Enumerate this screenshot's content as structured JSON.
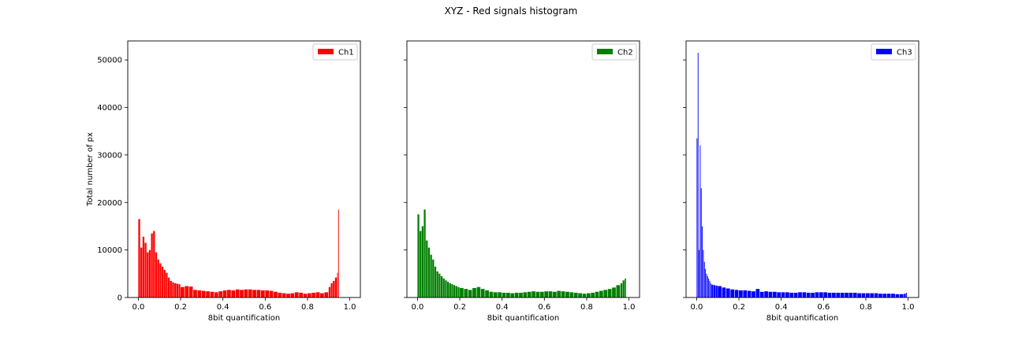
{
  "figure": {
    "suptitle": "XYZ - Red signals histogram"
  },
  "chart_data": [
    {
      "type": "bar",
      "title": "",
      "xlabel": "8bit quantification",
      "ylabel": "Total number of px",
      "xlim": [
        -0.05,
        1.05
      ],
      "ylim": [
        0,
        54000
      ],
      "xticks": [
        "0.0",
        "0.2",
        "0.4",
        "0.6",
        "0.8",
        "1.0"
      ],
      "yticks": [
        "0",
        "10000",
        "20000",
        "30000",
        "40000",
        "50000"
      ],
      "legend": {
        "label": "Ch1",
        "placement": "top-right"
      },
      "color": "#ff0000",
      "x": [
        0.0,
        0.01,
        0.02,
        0.03,
        0.04,
        0.05,
        0.06,
        0.07,
        0.08,
        0.09,
        0.1,
        0.11,
        0.12,
        0.13,
        0.14,
        0.15,
        0.16,
        0.17,
        0.18,
        0.19,
        0.2,
        0.22,
        0.24,
        0.26,
        0.28,
        0.3,
        0.32,
        0.34,
        0.36,
        0.38,
        0.4,
        0.42,
        0.44,
        0.46,
        0.48,
        0.5,
        0.52,
        0.54,
        0.56,
        0.58,
        0.6,
        0.62,
        0.64,
        0.66,
        0.68,
        0.7,
        0.72,
        0.74,
        0.76,
        0.78,
        0.8,
        0.82,
        0.84,
        0.86,
        0.88,
        0.9,
        0.91,
        0.92,
        0.93,
        0.94,
        0.945,
        0.95
      ],
      "values": [
        16500,
        10500,
        12800,
        11500,
        9500,
        10000,
        13500,
        14000,
        9500,
        8000,
        7200,
        6500,
        5800,
        5200,
        4200,
        3500,
        3200,
        3000,
        2900,
        2800,
        2200,
        2400,
        2300,
        1600,
        1500,
        1400,
        1300,
        1200,
        1100,
        1300,
        1500,
        1600,
        1500,
        1700,
        1600,
        1700,
        1700,
        1600,
        1600,
        1500,
        1500,
        1400,
        1200,
        1000,
        900,
        800,
        900,
        1100,
        1000,
        800,
        900,
        1000,
        1100,
        900,
        1100,
        2200,
        3000,
        3500,
        4200,
        5200,
        18500,
        0
      ]
    },
    {
      "type": "bar",
      "title": "",
      "xlabel": "8bit quantification",
      "ylabel": "",
      "xlim": [
        -0.05,
        1.05
      ],
      "ylim": [
        0,
        54000
      ],
      "xticks": [
        "0.0",
        "0.2",
        "0.4",
        "0.6",
        "0.8",
        "1.0"
      ],
      "yticks": [
        "0",
        "10000",
        "20000",
        "30000",
        "40000",
        "50000"
      ],
      "legend": {
        "label": "Ch2",
        "placement": "top-right"
      },
      "color": "#008000",
      "x": [
        0.0,
        0.01,
        0.02,
        0.03,
        0.04,
        0.05,
        0.06,
        0.07,
        0.08,
        0.09,
        0.1,
        0.11,
        0.12,
        0.13,
        0.14,
        0.15,
        0.16,
        0.17,
        0.18,
        0.19,
        0.2,
        0.22,
        0.24,
        0.26,
        0.28,
        0.3,
        0.32,
        0.34,
        0.36,
        0.38,
        0.4,
        0.42,
        0.44,
        0.46,
        0.48,
        0.5,
        0.52,
        0.54,
        0.56,
        0.58,
        0.6,
        0.62,
        0.64,
        0.66,
        0.68,
        0.7,
        0.72,
        0.74,
        0.76,
        0.78,
        0.8,
        0.82,
        0.84,
        0.86,
        0.88,
        0.9,
        0.92,
        0.94,
        0.96,
        0.97,
        0.98
      ],
      "values": [
        17500,
        14000,
        15000,
        18500,
        12000,
        10500,
        9000,
        8000,
        6500,
        5500,
        5000,
        4500,
        4000,
        3600,
        3300,
        3000,
        2800,
        2600,
        2400,
        2200,
        2000,
        1800,
        1600,
        2000,
        2200,
        1800,
        1500,
        1200,
        1100,
        1100,
        1000,
        1000,
        900,
        1000,
        1000,
        1100,
        1200,
        1300,
        1200,
        1200,
        1300,
        1300,
        1200,
        1400,
        1300,
        1200,
        1100,
        1000,
        900,
        800,
        900,
        1000,
        1200,
        1400,
        1600,
        1800,
        2100,
        2600,
        3000,
        3600,
        4000
      ]
    },
    {
      "type": "bar",
      "title": "",
      "xlabel": "8bit quantification",
      "ylabel": "",
      "xlim": [
        -0.05,
        1.05
      ],
      "ylim": [
        0,
        54000
      ],
      "xticks": [
        "0.0",
        "0.2",
        "0.4",
        "0.6",
        "0.8",
        "1.0"
      ],
      "yticks": [
        "0",
        "10000",
        "20000",
        "30000",
        "40000",
        "50000"
      ],
      "legend": {
        "label": "Ch3",
        "placement": "top-right"
      },
      "color": "#0000ff",
      "x": [
        0.0,
        0.005,
        0.01,
        0.015,
        0.02,
        0.025,
        0.03,
        0.035,
        0.04,
        0.045,
        0.05,
        0.055,
        0.06,
        0.065,
        0.07,
        0.08,
        0.09,
        0.1,
        0.12,
        0.14,
        0.16,
        0.18,
        0.2,
        0.22,
        0.24,
        0.26,
        0.28,
        0.3,
        0.32,
        0.34,
        0.36,
        0.38,
        0.4,
        0.42,
        0.44,
        0.46,
        0.48,
        0.5,
        0.52,
        0.54,
        0.56,
        0.58,
        0.6,
        0.62,
        0.64,
        0.66,
        0.68,
        0.7,
        0.72,
        0.74,
        0.76,
        0.78,
        0.8,
        0.82,
        0.84,
        0.86,
        0.88,
        0.9,
        0.92,
        0.94,
        0.96,
        0.98,
        0.99
      ],
      "values": [
        33500,
        51500,
        10000,
        32000,
        23000,
        15000,
        10000,
        7500,
        6000,
        5000,
        4500,
        4000,
        3500,
        3000,
        2700,
        2600,
        2500,
        2400,
        2100,
        1900,
        1700,
        1600,
        1500,
        1500,
        1400,
        1300,
        1800,
        1200,
        1300,
        1200,
        1200,
        1100,
        1100,
        1100,
        1000,
        1000,
        1100,
        1100,
        1000,
        1000,
        1100,
        1100,
        1100,
        1000,
        1000,
        1000,
        1000,
        1000,
        1000,
        1000,
        900,
        900,
        900,
        900,
        900,
        800,
        800,
        800,
        800,
        700,
        700,
        800,
        1000
      ]
    }
  ]
}
